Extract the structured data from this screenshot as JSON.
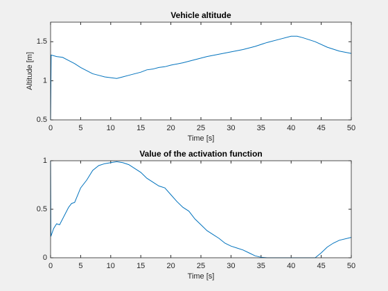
{
  "chart_data": [
    {
      "type": "line",
      "title": "Vehicle altitude",
      "x_label": "Time [s]",
      "y_label": "Altitude [m]",
      "xlim": [
        0,
        50
      ],
      "ylim": [
        0.5,
        1.75
      ],
      "xticks": [
        0,
        5,
        10,
        15,
        20,
        25,
        30,
        35,
        40,
        45,
        50
      ],
      "yticks": [
        0.5,
        1,
        1.5
      ],
      "series": [
        {
          "color": "#0072bd",
          "x": [
            0,
            0.1,
            1,
            2,
            3,
            4,
            5,
            6,
            7,
            8,
            9,
            10,
            11,
            12,
            13,
            14,
            15,
            16,
            17,
            18,
            19,
            20,
            22,
            24,
            26,
            28,
            30,
            32,
            34,
            36,
            38,
            40,
            41,
            42,
            44,
            46,
            48,
            50
          ],
          "values": [
            0.5,
            1.33,
            1.31,
            1.3,
            1.26,
            1.22,
            1.17,
            1.13,
            1.09,
            1.07,
            1.05,
            1.04,
            1.03,
            1.05,
            1.07,
            1.09,
            1.11,
            1.14,
            1.15,
            1.17,
            1.18,
            1.2,
            1.23,
            1.27,
            1.31,
            1.34,
            1.37,
            1.4,
            1.44,
            1.49,
            1.53,
            1.57,
            1.57,
            1.55,
            1.5,
            1.43,
            1.38,
            1.35
          ]
        }
      ]
    },
    {
      "type": "line",
      "title": "Value of the activation function",
      "x_label": "Time [s]",
      "xlim": [
        0,
        50
      ],
      "ylim": [
        0,
        1
      ],
      "xticks": [
        0,
        5,
        10,
        15,
        20,
        25,
        30,
        35,
        40,
        45,
        50
      ],
      "yticks": [
        0,
        0.5,
        1
      ],
      "series": [
        {
          "color": "#0072bd",
          "x": [
            0,
            0.05,
            0.5,
            1,
            1.5,
            2,
            3,
            3.5,
            4,
            5,
            6,
            7,
            8,
            9,
            10,
            11,
            12,
            13,
            14,
            15,
            16,
            17,
            18,
            19,
            20,
            21,
            22,
            23,
            24,
            25,
            26,
            27,
            28,
            29,
            30,
            31,
            32,
            33,
            34,
            35,
            36,
            44,
            45,
            46,
            47,
            48,
            50
          ],
          "values": [
            1,
            0.22,
            0.3,
            0.35,
            0.34,
            0.4,
            0.52,
            0.56,
            0.57,
            0.72,
            0.8,
            0.9,
            0.95,
            0.97,
            0.98,
            0.99,
            0.98,
            0.96,
            0.92,
            0.88,
            0.82,
            0.78,
            0.74,
            0.72,
            0.65,
            0.58,
            0.52,
            0.48,
            0.4,
            0.34,
            0.28,
            0.24,
            0.2,
            0.15,
            0.12,
            0.1,
            0.08,
            0.05,
            0.02,
            0.005,
            0,
            0,
            0.05,
            0.11,
            0.15,
            0.18,
            0.21
          ]
        }
      ]
    }
  ]
}
